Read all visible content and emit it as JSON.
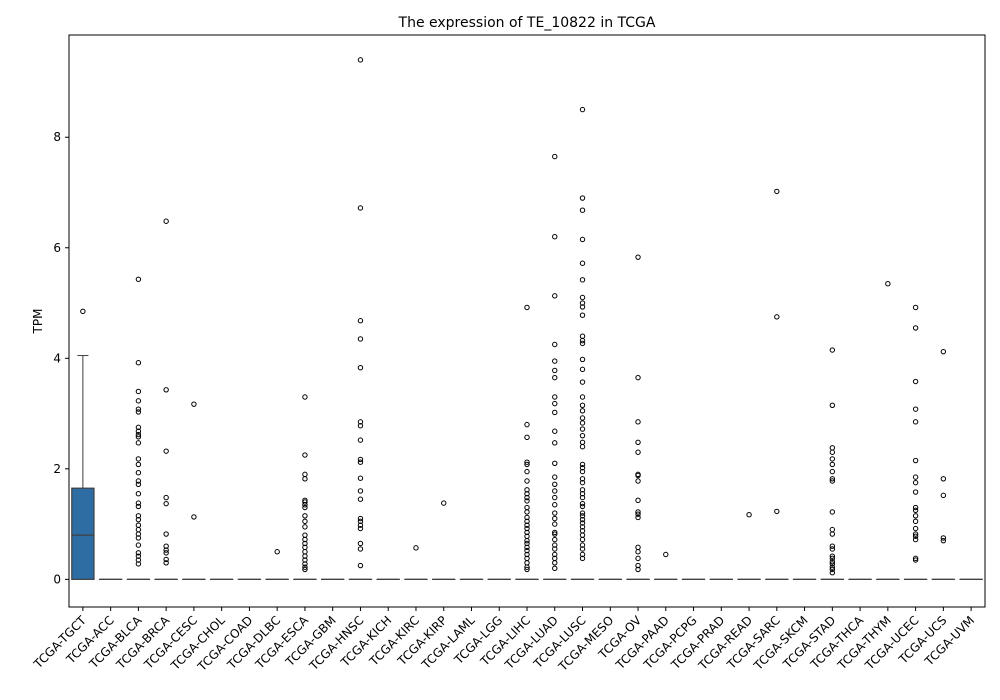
{
  "chart_data": {
    "type": "box",
    "title": "The expression of TE_10822 in TCGA",
    "xlabel": "",
    "ylabel": "TPM",
    "ylim": [
      -0.5,
      9.85
    ],
    "yticks": [
      0,
      2,
      4,
      6,
      8
    ],
    "box_color": "#2e6da4",
    "categories": [
      "TCGA-TGCT",
      "TCGA-ACC",
      "TCGA-BLCA",
      "TCGA-BRCA",
      "TCGA-CESC",
      "TCGA-CHOL",
      "TCGA-COAD",
      "TCGA-DLBC",
      "TCGA-ESCA",
      "TCGA-GBM",
      "TCGA-HNSC",
      "TCGA-KICH",
      "TCGA-KIRC",
      "TCGA-KIRP",
      "TCGA-LAML",
      "TCGA-LGG",
      "TCGA-LIHC",
      "TCGA-LUAD",
      "TCGA-LUSC",
      "TCGA-MESO",
      "TCGA-OV",
      "TCGA-PAAD",
      "TCGA-PCPG",
      "TCGA-PRAD",
      "TCGA-READ",
      "TCGA-SARC",
      "TCGA-SKCM",
      "TCGA-STAD",
      "TCGA-THCA",
      "TCGA-THYM",
      "TCGA-UCEC",
      "TCGA-UCS",
      "TCGA-UVM"
    ],
    "boxes": [
      {
        "q1": 0,
        "median": 0.8,
        "q3": 1.65,
        "whisker_low": 0,
        "whisker_high": 4.05,
        "outliers": [
          4.85
        ]
      },
      {
        "q1": 0,
        "median": 0,
        "q3": 0,
        "whisker_low": 0,
        "whisker_high": 0,
        "outliers": []
      },
      {
        "q1": 0,
        "median": 0,
        "q3": 0,
        "whisker_low": 0,
        "whisker_high": 0,
        "outliers": [
          5.43,
          3.92,
          3.4,
          3.23,
          3.08,
          3.03,
          2.75,
          2.68,
          2.62,
          2.58,
          2.47,
          2.18,
          2.08,
          1.93,
          1.78,
          1.72,
          1.55,
          1.38,
          1.32,
          1.15,
          1.08,
          0.98,
          0.9,
          0.82,
          0.75,
          0.62,
          0.48,
          0.42,
          0.35,
          0.28
        ]
      },
      {
        "q1": 0,
        "median": 0,
        "q3": 0,
        "whisker_low": 0,
        "whisker_high": 0,
        "outliers": [
          6.48,
          3.43,
          2.32,
          1.48,
          1.37,
          0.82,
          0.6,
          0.53,
          0.48,
          0.36,
          0.3
        ]
      },
      {
        "q1": 0,
        "median": 0,
        "q3": 0,
        "whisker_low": 0,
        "whisker_high": 0,
        "outliers": [
          3.17,
          1.13
        ]
      },
      {
        "q1": 0,
        "median": 0,
        "q3": 0,
        "whisker_low": 0,
        "whisker_high": 0,
        "outliers": []
      },
      {
        "q1": 0,
        "median": 0,
        "q3": 0,
        "whisker_low": 0,
        "whisker_high": 0,
        "outliers": []
      },
      {
        "q1": 0,
        "median": 0,
        "q3": 0,
        "whisker_low": 0,
        "whisker_high": 0,
        "outliers": [
          0.5
        ]
      },
      {
        "q1": 0,
        "median": 0,
        "q3": 0,
        "whisker_low": 0,
        "whisker_high": 0,
        "outliers": [
          3.3,
          2.25,
          1.9,
          1.82,
          1.43,
          1.4,
          1.35,
          1.3,
          1.15,
          1.05,
          0.95,
          0.8,
          0.72,
          0.65,
          0.58,
          0.5,
          0.42,
          0.35,
          0.28,
          0.22,
          0.18
        ]
      },
      {
        "q1": 0,
        "median": 0,
        "q3": 0,
        "whisker_low": 0,
        "whisker_high": 0,
        "outliers": []
      },
      {
        "q1": 0,
        "median": 0,
        "q3": 0,
        "whisker_low": 0,
        "whisker_high": 0,
        "outliers": [
          9.4,
          6.72,
          4.68,
          4.35,
          3.83,
          2.85,
          2.78,
          2.52,
          2.17,
          2.12,
          1.83,
          1.6,
          1.45,
          1.1,
          1.05,
          0.98,
          0.92,
          0.65,
          0.55,
          0.25
        ]
      },
      {
        "q1": 0,
        "median": 0,
        "q3": 0,
        "whisker_low": 0,
        "whisker_high": 0,
        "outliers": []
      },
      {
        "q1": 0,
        "median": 0,
        "q3": 0,
        "whisker_low": 0,
        "whisker_high": 0,
        "outliers": [
          0.57
        ]
      },
      {
        "q1": 0,
        "median": 0,
        "q3": 0,
        "whisker_low": 0,
        "whisker_high": 0,
        "outliers": [
          1.38
        ]
      },
      {
        "q1": 0,
        "median": 0,
        "q3": 0,
        "whisker_low": 0,
        "whisker_high": 0,
        "outliers": []
      },
      {
        "q1": 0,
        "median": 0,
        "q3": 0,
        "whisker_low": 0,
        "whisker_high": 0,
        "outliers": []
      },
      {
        "q1": 0,
        "median": 0,
        "q3": 0,
        "whisker_low": 0,
        "whisker_high": 0,
        "outliers": [
          4.92,
          2.8,
          2.57,
          2.12,
          2.08,
          1.95,
          1.78,
          1.62,
          1.55,
          1.48,
          1.42,
          1.3,
          1.22,
          1.12,
          1.05,
          0.98,
          0.92,
          0.85,
          0.78,
          0.7,
          0.65,
          0.58,
          0.52,
          0.45,
          0.38,
          0.3,
          0.22,
          0.18
        ]
      },
      {
        "q1": 0,
        "median": 0,
        "q3": 0,
        "whisker_low": 0,
        "whisker_high": 0,
        "outliers": [
          7.65,
          6.2,
          5.13,
          4.25,
          3.95,
          3.78,
          3.65,
          3.3,
          3.18,
          3.02,
          2.68,
          2.47,
          2.1,
          1.85,
          1.72,
          1.6,
          1.48,
          1.35,
          1.2,
          1.1,
          1.0,
          0.85,
          0.82,
          0.72,
          0.62,
          0.55,
          0.45,
          0.38,
          0.3,
          0.2
        ]
      },
      {
        "q1": 0,
        "median": 0,
        "q3": 0,
        "whisker_low": 0,
        "whisker_high": 0,
        "outliers": [
          8.5,
          6.9,
          6.68,
          6.15,
          5.72,
          5.42,
          5.1,
          5.0,
          4.93,
          4.78,
          4.4,
          4.32,
          4.27,
          3.98,
          3.8,
          3.57,
          3.3,
          3.15,
          3.05,
          2.92,
          2.83,
          2.72,
          2.6,
          2.48,
          2.4,
          2.08,
          2.02,
          1.95,
          1.82,
          1.75,
          1.62,
          1.55,
          1.48,
          1.37,
          1.32,
          1.2,
          1.15,
          1.08,
          1.02,
          0.95,
          0.88,
          0.8,
          0.72,
          0.62,
          0.55,
          0.45,
          0.38
        ]
      },
      {
        "q1": 0,
        "median": 0,
        "q3": 0,
        "whisker_low": 0,
        "whisker_high": 0,
        "outliers": []
      },
      {
        "q1": 0,
        "median": 0,
        "q3": 0,
        "whisker_low": 0,
        "whisker_high": 0,
        "outliers": [
          5.83,
          3.65,
          2.85,
          2.48,
          2.3,
          1.9,
          1.88,
          1.78,
          1.43,
          1.22,
          1.18,
          1.12,
          0.58,
          0.5,
          0.38,
          0.25,
          0.18
        ]
      },
      {
        "q1": 0,
        "median": 0,
        "q3": 0,
        "whisker_low": 0,
        "whisker_high": 0,
        "outliers": [
          0.45
        ]
      },
      {
        "q1": 0,
        "median": 0,
        "q3": 0,
        "whisker_low": 0,
        "whisker_high": 0,
        "outliers": []
      },
      {
        "q1": 0,
        "median": 0,
        "q3": 0,
        "whisker_low": 0,
        "whisker_high": 0,
        "outliers": []
      },
      {
        "q1": 0,
        "median": 0,
        "q3": 0,
        "whisker_low": 0,
        "whisker_high": 0,
        "outliers": [
          1.17
        ]
      },
      {
        "q1": 0,
        "median": 0,
        "q3": 0,
        "whisker_low": 0,
        "whisker_high": 0,
        "outliers": [
          7.02,
          4.75,
          1.23
        ]
      },
      {
        "q1": 0,
        "median": 0,
        "q3": 0,
        "whisker_low": 0,
        "whisker_high": 0,
        "outliers": []
      },
      {
        "q1": 0,
        "median": 0,
        "q3": 0,
        "whisker_low": 0,
        "whisker_high": 0,
        "outliers": [
          4.15,
          3.15,
          2.38,
          2.3,
          2.18,
          2.08,
          1.95,
          1.82,
          1.78,
          1.22,
          0.9,
          0.82,
          0.6,
          0.55,
          0.42,
          0.38,
          0.32,
          0.28,
          0.22,
          0.18,
          0.12
        ]
      },
      {
        "q1": 0,
        "median": 0,
        "q3": 0,
        "whisker_low": 0,
        "whisker_high": 0,
        "outliers": []
      },
      {
        "q1": 0,
        "median": 0,
        "q3": 0,
        "whisker_low": 0,
        "whisker_high": 0,
        "outliers": [
          5.35
        ]
      },
      {
        "q1": 0,
        "median": 0,
        "q3": 0,
        "whisker_low": 0,
        "whisker_high": 0,
        "outliers": [
          4.92,
          4.55,
          3.58,
          3.08,
          2.85,
          2.15,
          1.85,
          1.75,
          1.58,
          1.3,
          1.25,
          1.15,
          1.05,
          0.92,
          0.82,
          0.78,
          0.72,
          0.38,
          0.35
        ]
      },
      {
        "q1": 0,
        "median": 0,
        "q3": 0,
        "whisker_low": 0,
        "whisker_high": 0,
        "outliers": [
          4.12,
          1.82,
          1.52,
          0.75,
          0.7
        ]
      },
      {
        "q1": 0,
        "median": 0,
        "q3": 0,
        "whisker_low": 0,
        "whisker_high": 0,
        "outliers": []
      }
    ]
  }
}
